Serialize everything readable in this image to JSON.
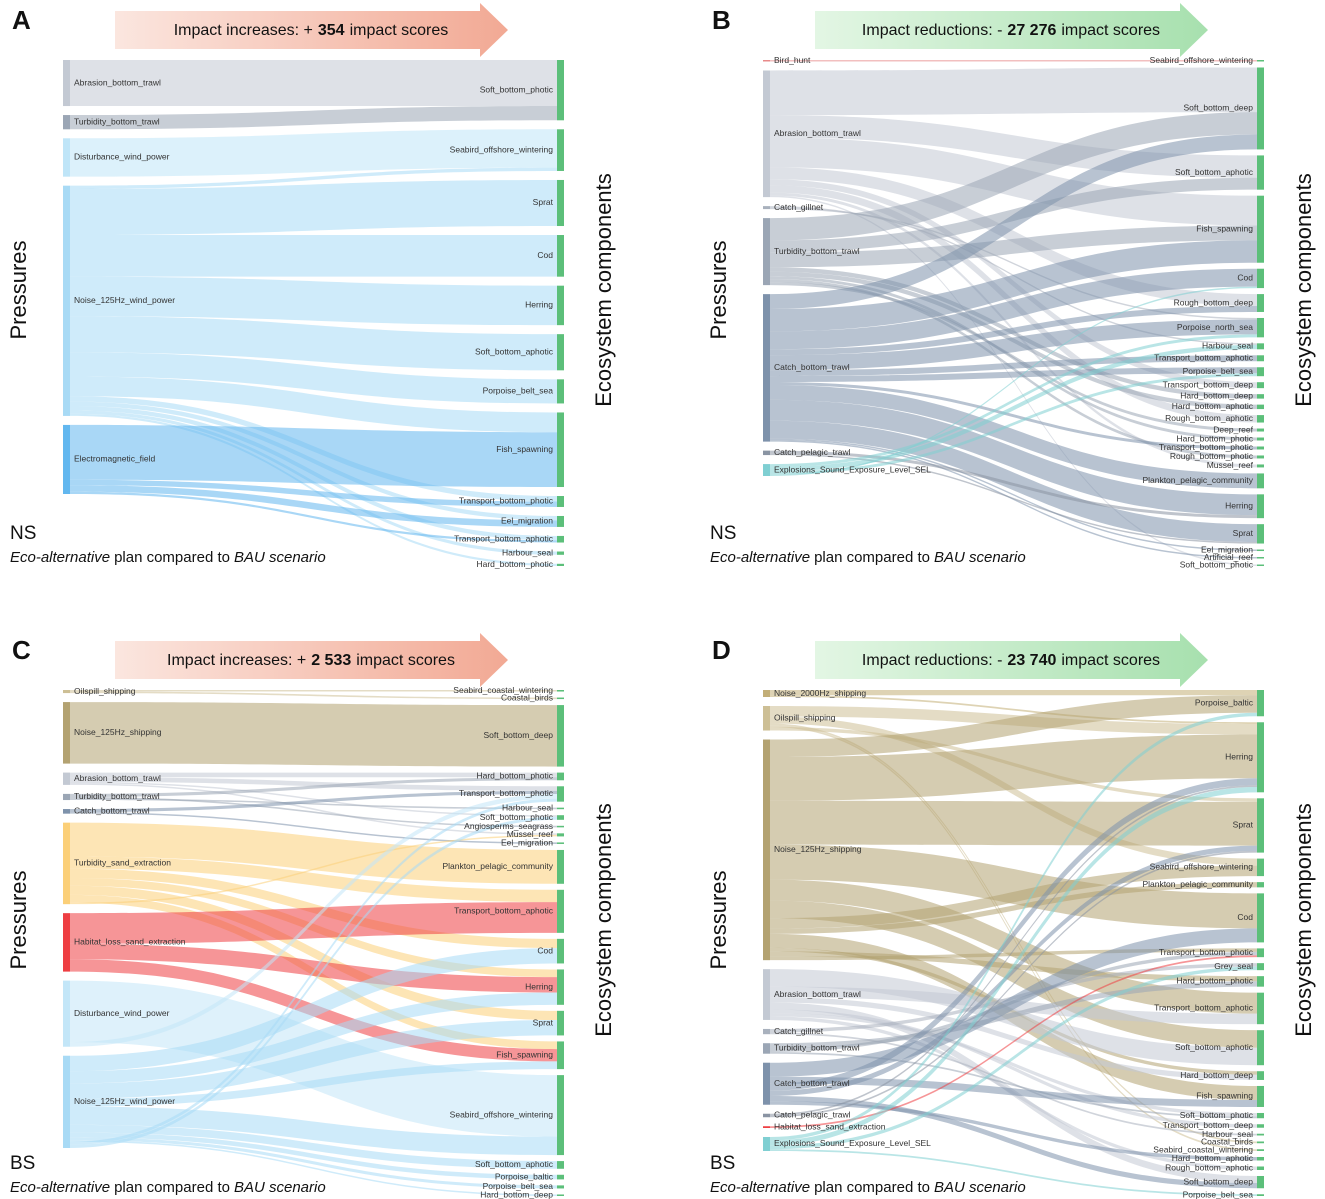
{
  "panels": [
    {
      "letter": "A",
      "banner": {
        "lead": "Impact increases: +",
        "number": "354",
        "tail": "impact scores",
        "colors": [
          "#fbe6df",
          "#f2a994"
        ]
      },
      "region": "NS",
      "subtitle": [
        "Eco-alternative",
        "plan compared to",
        "BAU scenario"
      ],
      "left_axis": "Pressures",
      "right_axis": "Ecosystem components",
      "target_color": "#5cbf7a",
      "sources": [
        {
          "label": "Abrasion_bottom_trawl",
          "color": "#c3c9d3"
        },
        {
          "label": "Turbidity_bottom_trawl",
          "color": "#9ba6b5"
        },
        {
          "label": "Disturbance_wind_power",
          "color": "#bfe5f8"
        },
        {
          "label": "Noise_125Hz_wind_power",
          "color": "#a8daf5"
        },
        {
          "label": "Electromagnetic_field",
          "color": "#62b7ef"
        }
      ],
      "targets": [
        "Soft_bottom_photic",
        "Seabird_offshore_wintering",
        "Sprat",
        "Cod",
        "Herring",
        "Soft_bottom_aphotic",
        "Porpoise_belt_sea",
        "Fish_spawning",
        "Transport_bottom_photic",
        "Eel_migration",
        "Transport_bottom_aphotic",
        "Harbour_seal",
        "Hard_bottom_photic"
      ],
      "links": [
        [
          0,
          0,
          42
        ],
        [
          1,
          0,
          13
        ],
        [
          2,
          1,
          35
        ],
        [
          3,
          1,
          3
        ],
        [
          3,
          2,
          42
        ],
        [
          3,
          3,
          38
        ],
        [
          3,
          4,
          36
        ],
        [
          3,
          5,
          33
        ],
        [
          3,
          6,
          22
        ],
        [
          3,
          7,
          18
        ],
        [
          3,
          8,
          5
        ],
        [
          3,
          9,
          4
        ],
        [
          3,
          10,
          4
        ],
        [
          3,
          11,
          3
        ],
        [
          3,
          12,
          2
        ],
        [
          4,
          7,
          50
        ],
        [
          4,
          8,
          5
        ],
        [
          4,
          9,
          6
        ],
        [
          4,
          10,
          2
        ]
      ]
    },
    {
      "letter": "B",
      "banner": {
        "lead": "Impact reductions: -",
        "number": "27 276",
        "tail": "impact scores",
        "colors": [
          "#e3f6e4",
          "#a7e0ae"
        ]
      },
      "region": "NS",
      "subtitle": [
        "Eco-alternative",
        "plan compared to",
        "BAU scenario"
      ],
      "left_axis": "Pressures",
      "right_axis": "Ecosystem components",
      "target_color": "#5cbf7a",
      "sources": [
        {
          "label": "Bird_hunt",
          "color": "#e88a8a"
        },
        {
          "label": "Abrasion_bottom_trawl",
          "color": "#c3c9d3"
        },
        {
          "label": "Catch_gillnet",
          "color": "#a9b1bd"
        },
        {
          "label": "Turbidity_bottom_trawl",
          "color": "#9ba6b5"
        },
        {
          "label": "Catch_bottom_trawl",
          "color": "#7e92ab"
        },
        {
          "label": "Catch_pelagic_trawl",
          "color": "#8a94a3"
        },
        {
          "label": "Explosions_Sound_Exposure_Level_SEL",
          "color": "#7fcfd2"
        }
      ],
      "targets": [
        "Seabird_offshore_wintering",
        "Soft_bottom_deep",
        "Soft_bottom_aphotic",
        "Fish_spawning",
        "Cod",
        "Rough_bottom_deep",
        "Porpoise_north_sea",
        "Harbour_seal",
        "Transport_bottom_aphotic",
        "Porpoise_belt_sea",
        "Transport_bottom_deep",
        "Hard_bottom_deep",
        "Hard_bottom_aphotic",
        "Rough_bottom_aphotic",
        "Deep_reef",
        "Hard_bottom_photic",
        "Transport_bottom_photic",
        "Rough_bottom_photic",
        "Mussel_reef",
        "Plankton_pelagic_community",
        "Herring",
        "Sprat",
        "Eel_migration",
        "Artificial_reef",
        "Soft_bottom_photic"
      ],
      "links": [
        [
          0,
          0,
          1
        ],
        [
          1,
          1,
          30
        ],
        [
          1,
          2,
          15
        ],
        [
          1,
          3,
          20
        ],
        [
          1,
          5,
          8
        ],
        [
          1,
          10,
          4
        ],
        [
          1,
          13,
          5
        ],
        [
          1,
          18,
          2
        ],
        [
          1,
          24,
          1
        ],
        [
          2,
          7,
          1
        ],
        [
          2,
          6,
          1
        ],
        [
          3,
          1,
          15
        ],
        [
          3,
          2,
          8
        ],
        [
          3,
          3,
          10
        ],
        [
          3,
          11,
          3
        ],
        [
          3,
          12,
          3
        ],
        [
          3,
          15,
          2
        ],
        [
          3,
          17,
          2
        ],
        [
          3,
          14,
          2
        ],
        [
          4,
          1,
          10
        ],
        [
          4,
          3,
          15
        ],
        [
          4,
          4,
          12
        ],
        [
          4,
          5,
          4
        ],
        [
          4,
          6,
          10
        ],
        [
          4,
          8,
          4
        ],
        [
          4,
          9,
          4
        ],
        [
          4,
          16,
          2
        ],
        [
          4,
          19,
          10
        ],
        [
          4,
          20,
          14
        ],
        [
          4,
          21,
          12
        ],
        [
          4,
          22,
          1
        ],
        [
          4,
          23,
          1
        ],
        [
          5,
          20,
          2
        ],
        [
          5,
          21,
          1
        ],
        [
          6,
          6,
          2
        ],
        [
          6,
          7,
          3
        ],
        [
          6,
          9,
          2
        ],
        [
          6,
          4,
          1
        ]
      ]
    },
    {
      "letter": "C",
      "banner": {
        "lead": "Impact increases: +",
        "number": "2 533",
        "tail": "impact scores",
        "colors": [
          "#fbe6df",
          "#f2a994"
        ]
      },
      "region": "BS",
      "subtitle": [
        "Eco-alternative",
        "plan compared to",
        "BAU scenario"
      ],
      "left_axis": "Pressures",
      "right_axis": "Ecosystem components",
      "target_color": "#5cbf7a",
      "sources": [
        {
          "label": "Oilspill_shipping",
          "color": "#cdbf95"
        },
        {
          "label": "Noise_125Hz_shipping",
          "color": "#b3a271"
        },
        {
          "label": "Abrasion_bottom_trawl",
          "color": "#c3c9d3"
        },
        {
          "label": "Turbidity_bottom_trawl",
          "color": "#9ba6b5"
        },
        {
          "label": "Catch_bottom_trawl",
          "color": "#7e92ab"
        },
        {
          "label": "Turbidity_sand_extraction",
          "color": "#fbcf78"
        },
        {
          "label": "Habitat_loss_sand_extraction",
          "color": "#ee3e42"
        },
        {
          "label": "Disturbance_wind_power",
          "color": "#c3e6f8"
        },
        {
          "label": "Noise_125Hz_wind_power",
          "color": "#a8daf5"
        }
      ],
      "targets": [
        "Seabird_coastal_wintering",
        "Coastal_birds",
        "Soft_bottom_deep",
        "Hard_bottom_photic",
        "Transport_bottom_photic",
        "Harbour_seal",
        "Soft_bottom_photic",
        "Angiosperms_seagrass",
        "Mussel_reef",
        "Eel_migration",
        "Plankton_pelagic_community",
        "Transport_bottom_aphotic",
        "Cod",
        "Herring",
        "Sprat",
        "Fish_spawning",
        "Seabird_offshore_wintering",
        "Soft_bottom_aphotic",
        "Porpoise_baltic",
        "Porpoise_belt_sea",
        "Hard_bottom_deep"
      ],
      "links": [
        [
          0,
          0,
          1
        ],
        [
          0,
          1,
          1
        ],
        [
          1,
          2,
          40
        ],
        [
          2,
          3,
          3
        ],
        [
          2,
          4,
          3
        ],
        [
          2,
          6,
          1
        ],
        [
          2,
          8,
          1
        ],
        [
          3,
          3,
          2
        ],
        [
          3,
          7,
          1
        ],
        [
          3,
          5,
          1
        ],
        [
          4,
          4,
          2
        ],
        [
          4,
          9,
          1
        ],
        [
          5,
          10,
          22
        ],
        [
          5,
          11,
          8
        ],
        [
          5,
          12,
          6
        ],
        [
          5,
          13,
          5
        ],
        [
          5,
          14,
          6
        ],
        [
          5,
          15,
          5
        ],
        [
          5,
          8,
          1
        ],
        [
          6,
          11,
          20
        ],
        [
          6,
          13,
          10
        ],
        [
          6,
          15,
          8
        ],
        [
          7,
          16,
          40
        ],
        [
          7,
          4,
          3
        ],
        [
          8,
          12,
          10
        ],
        [
          8,
          13,
          8
        ],
        [
          8,
          14,
          10
        ],
        [
          8,
          15,
          5
        ],
        [
          8,
          16,
          12
        ],
        [
          8,
          17,
          5
        ],
        [
          8,
          18,
          3
        ],
        [
          8,
          19,
          2
        ],
        [
          8,
          20,
          1
        ],
        [
          8,
          4,
          2
        ],
        [
          8,
          6,
          2
        ]
      ]
    },
    {
      "letter": "D",
      "banner": {
        "lead": "Impact reductions: -",
        "number": "23 740",
        "tail": "impact scores",
        "colors": [
          "#e3f6e4",
          "#a7e0ae"
        ]
      },
      "region": "BS",
      "subtitle": [
        "Eco-alternative",
        "plan compared to",
        "BAU scenario"
      ],
      "left_axis": "Pressures",
      "right_axis": "Ecosystem components",
      "target_color": "#5cbf7a",
      "sources": [
        {
          "label": "Noise_2000Hz_shipping",
          "color": "#c2ae77"
        },
        {
          "label": "Oilspill_shipping",
          "color": "#cdbf95"
        },
        {
          "label": "Noise_125Hz_shipping",
          "color": "#b3a271"
        },
        {
          "label": "Abrasion_bottom_trawl",
          "color": "#c3c9d3"
        },
        {
          "label": "Catch_gillnet",
          "color": "#a9b1bd"
        },
        {
          "label": "Turbidity_bottom_trawl",
          "color": "#9ba6b5"
        },
        {
          "label": "Catch_bottom_trawl",
          "color": "#7e92ab"
        },
        {
          "label": "Catch_pelagic_trawl",
          "color": "#8a94a3"
        },
        {
          "label": "Habitat_loss_sand_extraction",
          "color": "#ee3e42"
        },
        {
          "label": "Explosions_Sound_Exposure_Level_SEL",
          "color": "#7fcfd2"
        }
      ],
      "targets": [
        "Porpoise_baltic",
        "Herring",
        "Sprat",
        "Seabird_offshore_wintering",
        "Plankton_pelagic_community",
        "Cod",
        "Transport_bottom_photic",
        "Grey_seal",
        "Hard_bottom_photic",
        "Transport_bottom_aphotic",
        "Soft_bottom_aphotic",
        "Hard_bottom_deep",
        "Fish_spawning",
        "Soft_bottom_photic",
        "Transport_bottom_deep",
        "Harbour_seal",
        "Coastal_birds",
        "Seabird_coastal_wintering",
        "Hard_bottom_aphotic",
        "Rough_bottom_aphotic",
        "Soft_bottom_deep",
        "Porpoise_belt_sea"
      ],
      "links": [
        [
          0,
          0,
          3
        ],
        [
          0,
          1,
          1
        ],
        [
          1,
          1,
          6
        ],
        [
          1,
          3,
          4
        ],
        [
          1,
          16,
          1
        ],
        [
          1,
          17,
          1
        ],
        [
          1,
          2,
          2
        ],
        [
          2,
          0,
          10
        ],
        [
          2,
          1,
          25
        ],
        [
          2,
          2,
          25
        ],
        [
          2,
          5,
          20
        ],
        [
          2,
          9,
          12
        ],
        [
          2,
          10,
          10
        ],
        [
          2,
          3,
          6
        ],
        [
          2,
          4,
          3
        ],
        [
          2,
          12,
          8
        ],
        [
          2,
          11,
          2
        ],
        [
          2,
          8,
          3
        ],
        [
          2,
          6,
          2
        ],
        [
          3,
          10,
          10
        ],
        [
          3,
          9,
          6
        ],
        [
          3,
          11,
          3
        ],
        [
          3,
          20,
          4
        ],
        [
          3,
          14,
          2
        ],
        [
          3,
          13,
          2
        ],
        [
          3,
          19,
          2
        ],
        [
          4,
          7,
          2
        ],
        [
          4,
          15,
          1
        ],
        [
          5,
          8,
          3
        ],
        [
          5,
          6,
          2
        ],
        [
          5,
          13,
          1
        ],
        [
          6,
          5,
          8
        ],
        [
          6,
          12,
          4
        ],
        [
          6,
          1,
          4
        ],
        [
          6,
          2,
          3
        ],
        [
          6,
          20,
          3
        ],
        [
          6,
          18,
          2
        ],
        [
          7,
          1,
          1
        ],
        [
          7,
          2,
          1
        ],
        [
          8,
          6,
          1
        ],
        [
          9,
          0,
          2
        ],
        [
          9,
          1,
          3
        ],
        [
          9,
          7,
          2
        ],
        [
          9,
          21,
          1
        ]
      ]
    }
  ]
}
